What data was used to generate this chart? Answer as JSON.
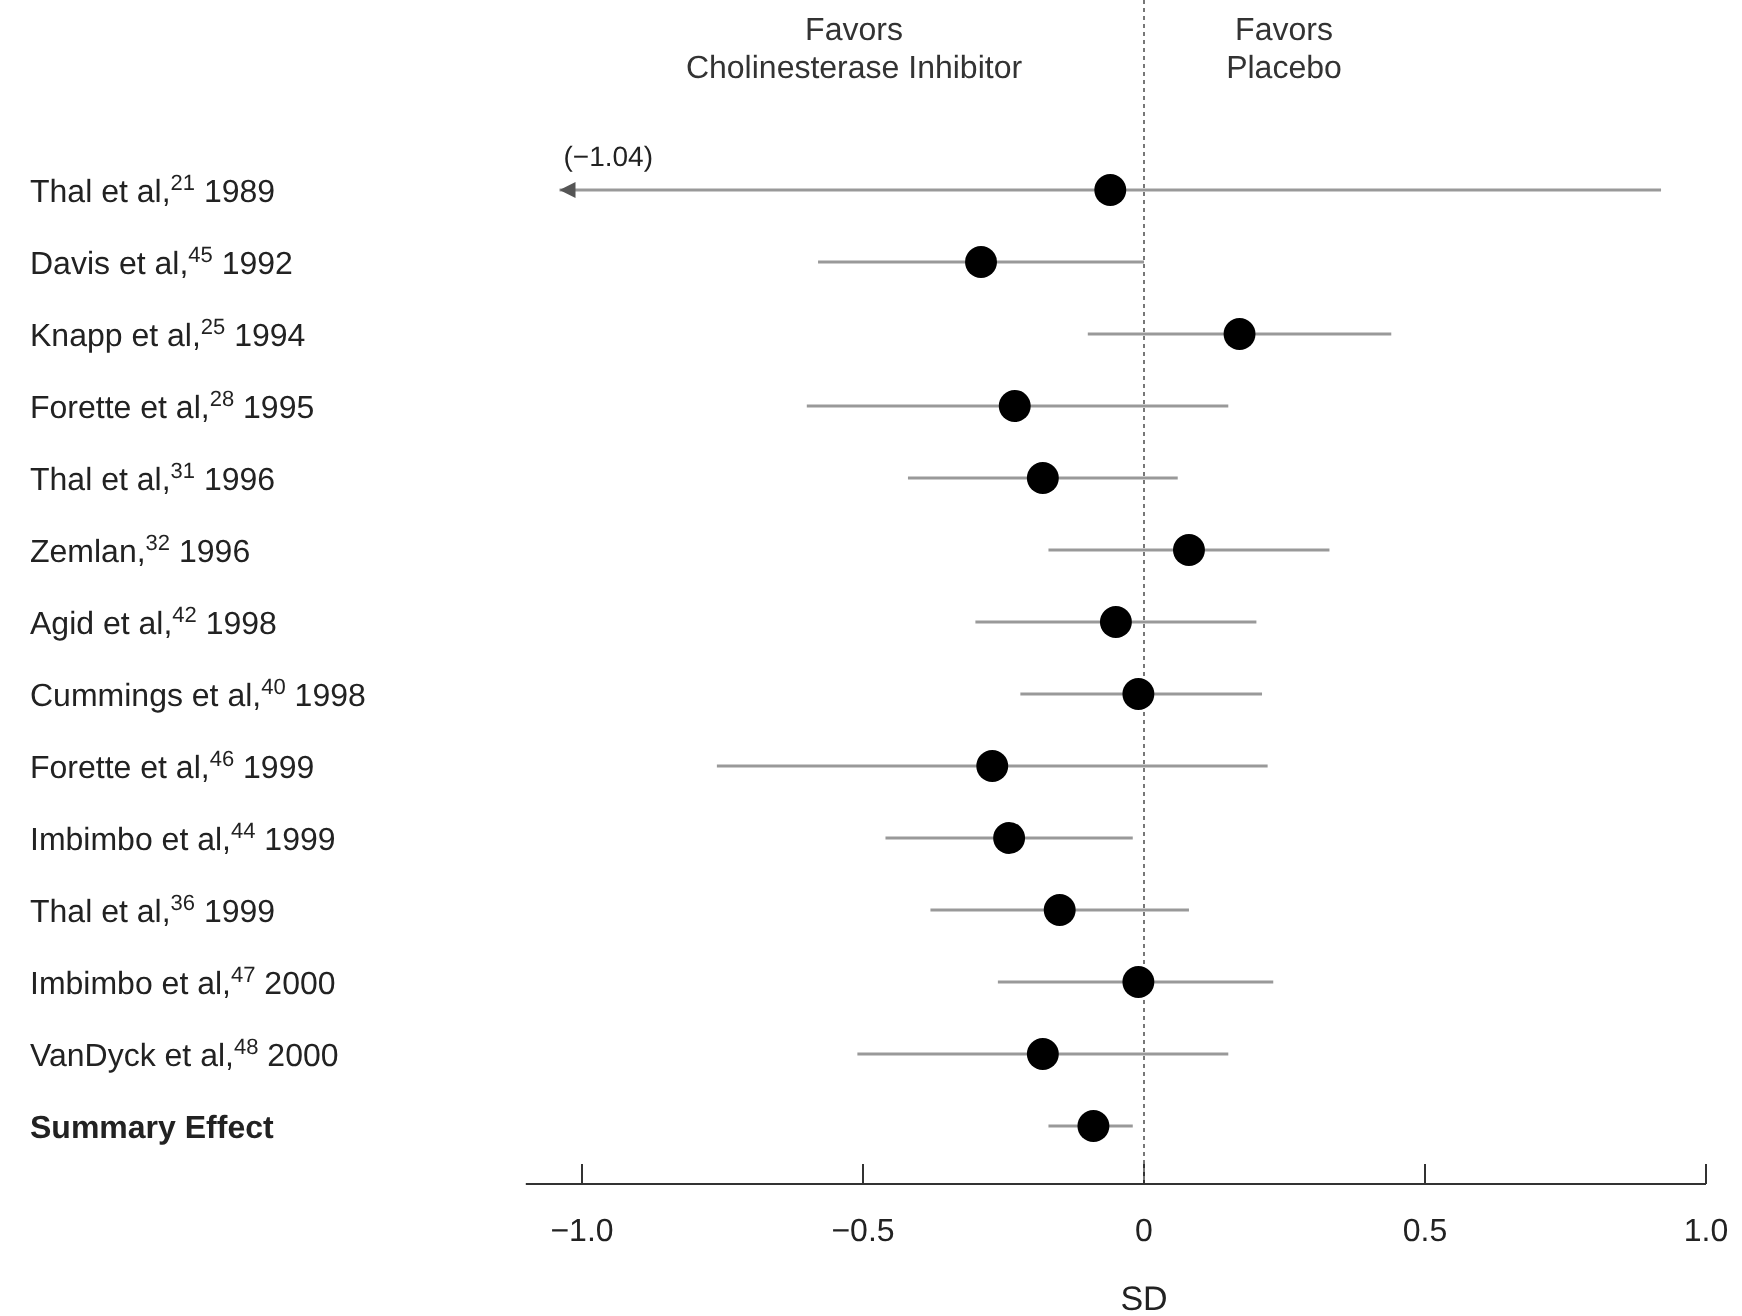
{
  "chart_data": {
    "type": "scatter",
    "orientation": "horizontal",
    "xlabel": "SD",
    "categories": [
      "Thal et al,$^{21}$ 1989",
      "Davis et al,$^{45}$ 1992",
      "Knapp et al,$^{25}$ 1994",
      "Forette et al,$^{28}$ 1995",
      "Thal et al,$^{31}$ 1996",
      "Zemlan,$^{32}$ 1996",
      "Agid et al,$^{42}$ 1998",
      "Cummings et al,$^{40}$ 1998",
      "Forette et al,$^{46}$ 1999",
      "Imbimbo et al,$^{44}$ 1999",
      "Thal et al,$^{36}$ 1999",
      "Imbimbo et al,$^{47}$ 2000",
      "VanDyck et al,$^{48}$ 2000",
      "Summary Effect"
    ],
    "values": [
      -0.06,
      -0.29,
      0.17,
      -0.23,
      -0.18,
      0.08,
      -0.05,
      -0.01,
      -0.27,
      -0.24,
      -0.15,
      -0.01,
      -0.18,
      -0.09
    ],
    "errors": [
      [
        -1.04,
        0.92
      ],
      [
        -0.58,
        0.0
      ],
      [
        -0.1,
        0.44
      ],
      [
        -0.6,
        0.15
      ],
      [
        -0.42,
        0.06
      ],
      [
        -0.17,
        0.33
      ],
      [
        -0.3,
        0.2
      ],
      [
        -0.22,
        0.21
      ],
      [
        -0.76,
        0.22
      ],
      [
        -0.46,
        -0.02
      ],
      [
        -0.38,
        0.08
      ],
      [
        -0.26,
        0.23
      ],
      [
        -0.51,
        0.15
      ],
      [
        -0.17,
        -0.02
      ]
    ],
    "color": "#000000",
    "marker": "circle",
    "xlim": [
      -1.1,
      1.0
    ],
    "xticks": [
      {
        "value": -1.0,
        "label": "−1.0"
      },
      {
        "value": -0.5,
        "label": "−0.5"
      },
      0,
      {
        "value": 0.5,
        "label": "0.5"
      },
      {
        "value": 1.0,
        "label": "1.0"
      }
    ],
    "ref_lines": [
      {
        "axis": "x",
        "value": 0,
        "label": null,
        "color": "#777777",
        "line_style": "dotted"
      }
    ],
    "annotations": [
      "Favors\nCholinesterase Inhibitor",
      "Favors\nPlacebo",
      {
        "text": "(−1.04)",
        "x": -1.04,
        "y": "Thal et al,$^{21}$ 1989"
      }
    ],
    "line_style": "solid"
  }
}
